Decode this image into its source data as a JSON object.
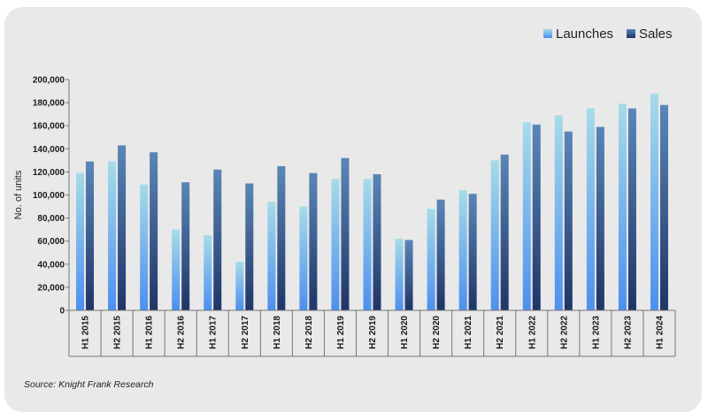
{
  "chart_data": {
    "type": "bar",
    "categories": [
      "H1 2015",
      "H2 2015",
      "H1 2016",
      "H2 2016",
      "H1 2017",
      "H2 2017",
      "H1 2018",
      "H2 2018",
      "H1 2019",
      "H2 2019",
      "H1 2020",
      "H2 2020",
      "H1 2021",
      "H2 2021",
      "H1 2022",
      "H2 2022",
      "H1 2023",
      "H2 2023",
      "H1 2024"
    ],
    "series": [
      {
        "name": "Launches",
        "values": [
          119000,
          129000,
          109000,
          70000,
          65000,
          42000,
          94000,
          90000,
          114000,
          114000,
          62000,
          88000,
          104000,
          130000,
          163000,
          169000,
          175000,
          179000,
          188000
        ],
        "color_top": "#a6dbe8",
        "color_bottom": "#4d8ff0"
      },
      {
        "name": "Sales",
        "values": [
          129000,
          143000,
          137000,
          111000,
          122000,
          110000,
          125000,
          119000,
          132000,
          118000,
          61000,
          96000,
          101000,
          135000,
          161000,
          155000,
          159000,
          175000,
          178000
        ],
        "color_top": "#5a86b8",
        "color_bottom": "#1f3566"
      }
    ],
    "title": "",
    "xlabel": "",
    "ylabel": "No. of units",
    "ylim": [
      0,
      200000
    ],
    "yticks": [
      "0",
      "20,000",
      "40,000",
      "60,000",
      "80,000",
      "100,000",
      "120,000",
      "140,000",
      "160,000",
      "180,000",
      "200,000"
    ],
    "grid": false,
    "legend_position": "top-right"
  },
  "source": "Source: Knight Frank Research"
}
